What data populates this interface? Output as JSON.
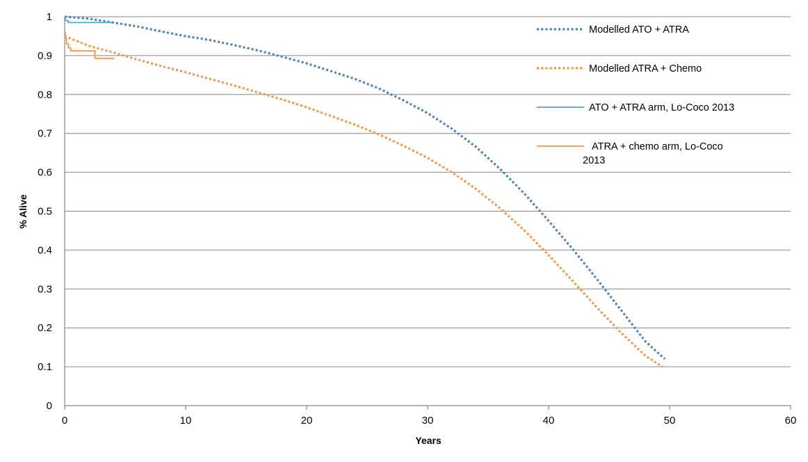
{
  "chart_data": {
    "type": "line",
    "xlabel": "Years",
    "ylabel": "% Alive",
    "xlim": [
      0,
      60
    ],
    "ylim": [
      0,
      1
    ],
    "x_ticks": [
      "0",
      "10",
      "20",
      "30",
      "40",
      "50",
      "60"
    ],
    "y_ticks": [
      "0",
      "0.1",
      "0.2",
      "0.3",
      "0.4",
      "0.5",
      "0.6",
      "0.7",
      "0.8",
      "0.9",
      "1"
    ],
    "grid": "horizontal",
    "legend_position": "top-right",
    "series": [
      {
        "name": "Modelled ATO + ATRA",
        "color": "#4f81bd",
        "style": "dotted",
        "x": [
          0,
          2,
          4,
          6,
          8,
          10,
          12,
          14,
          16,
          18,
          20,
          22,
          24,
          26,
          28,
          30,
          32,
          34,
          36,
          38,
          40,
          42,
          44,
          46,
          48,
          49.6
        ],
        "y": [
          1.0,
          0.995,
          0.985,
          0.975,
          0.962,
          0.95,
          0.94,
          0.927,
          0.913,
          0.897,
          0.88,
          0.86,
          0.84,
          0.815,
          0.785,
          0.752,
          0.712,
          0.665,
          0.608,
          0.545,
          0.475,
          0.402,
          0.325,
          0.245,
          0.165,
          0.12
        ]
      },
      {
        "name": "Modelled ATRA + Chemo",
        "color": "#f79646",
        "style": "dotted",
        "x": [
          0,
          2,
          4,
          6,
          8,
          10,
          12,
          14,
          16,
          18,
          20,
          22,
          24,
          26,
          28,
          30,
          32,
          34,
          36,
          38,
          40,
          42,
          44,
          46,
          48,
          49.4
        ],
        "y": [
          0.95,
          0.925,
          0.908,
          0.89,
          0.873,
          0.857,
          0.84,
          0.823,
          0.805,
          0.787,
          0.767,
          0.745,
          0.722,
          0.697,
          0.668,
          0.637,
          0.6,
          0.557,
          0.507,
          0.45,
          0.387,
          0.32,
          0.252,
          0.187,
          0.128,
          0.1
        ]
      },
      {
        "name": "ATO + ATRA arm, Lo-Coco 2013",
        "color": "#4bacc6",
        "style": "step",
        "x": [
          0,
          0.05,
          0.15,
          0.3,
          3.9
        ],
        "y": [
          1.0,
          0.99,
          0.99,
          0.985,
          0.985
        ]
      },
      {
        "name": "ATRA + chemo arm, Lo-Coco 2013",
        "color": "#f79646",
        "style": "step",
        "x": [
          0,
          0.05,
          0.15,
          0.3,
          0.5,
          1.2,
          2.5,
          2.5,
          4.1
        ],
        "y": [
          0.96,
          0.945,
          0.93,
          0.92,
          0.912,
          0.912,
          0.91,
          0.893,
          0.893
        ]
      }
    ]
  }
}
